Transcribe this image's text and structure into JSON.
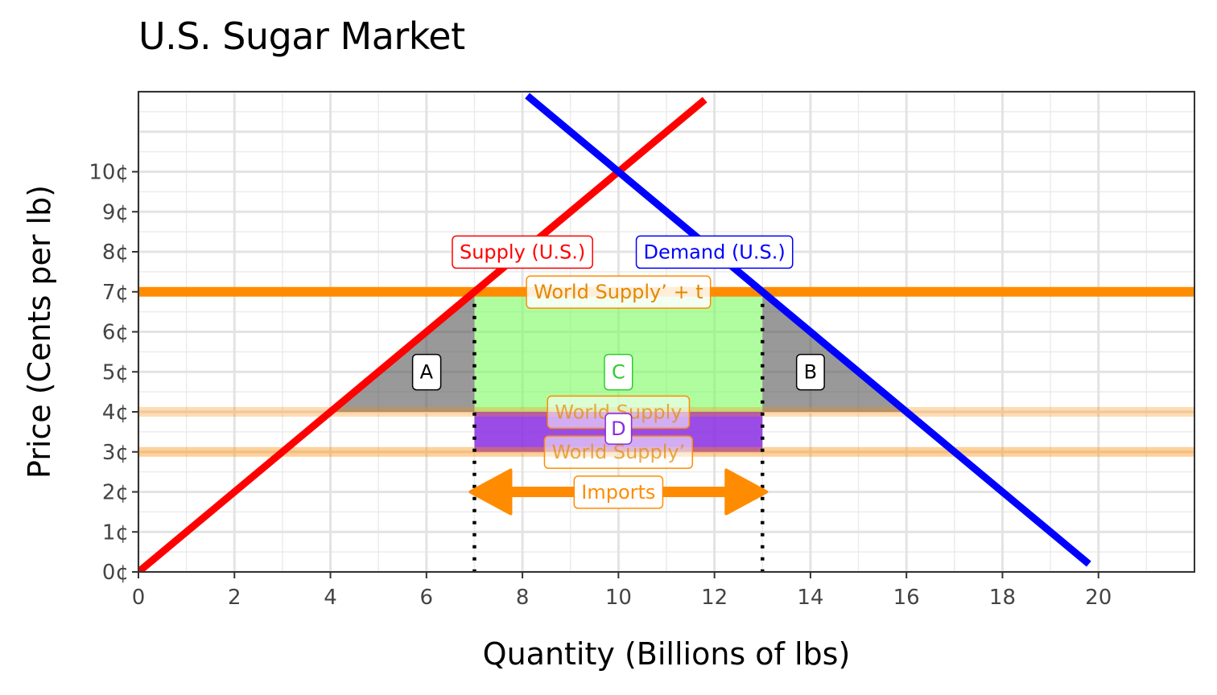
{
  "chart_data": {
    "type": "line",
    "title": "U.S. Sugar Market",
    "xlabel": "Quantity (Billions of lbs)",
    "ylabel": "Price (Cents per lb)",
    "xlim": [
      0,
      22
    ],
    "ylim": [
      0,
      12
    ],
    "x_ticks": [
      0,
      2,
      4,
      6,
      8,
      10,
      12,
      14,
      16,
      18,
      20
    ],
    "x_tick_labels": [
      "0",
      "2",
      "4",
      "6",
      "8",
      "10",
      "12",
      "14",
      "16",
      "18",
      "20"
    ],
    "y_ticks": [
      0,
      1,
      2,
      3,
      4,
      5,
      6,
      7,
      8,
      9,
      10
    ],
    "y_tick_labels": [
      "0¢",
      "1¢",
      "2¢",
      "3¢",
      "4¢",
      "5¢",
      "6¢",
      "7¢",
      "8¢",
      "9¢",
      "10¢"
    ],
    "grid": true,
    "series": [
      {
        "name": "Supply (U.S.)",
        "color": "#ff0000",
        "x": [
          0,
          11.8
        ],
        "y": [
          0,
          11.8
        ]
      },
      {
        "name": "Demand (U.S.)",
        "color": "#0000ff",
        "x": [
          8.1,
          19.8
        ],
        "y": [
          11.9,
          0.2
        ]
      }
    ],
    "hlines": [
      {
        "label": "World Supply’ + t",
        "y": 7,
        "color": "#ff8c00",
        "opacity": 1,
        "label_x": 10
      },
      {
        "label": "World Supply",
        "y": 4,
        "color": "#ff8c00",
        "opacity": 0.3,
        "label_x": 10
      },
      {
        "label": "World Supply’",
        "y": 3,
        "color": "#ff8c00",
        "opacity": 0.4,
        "label_x": 10
      }
    ],
    "vlines": [
      7,
      13
    ],
    "regions": [
      {
        "label": "A",
        "kind": "triangle",
        "points": [
          [
            4,
            4
          ],
          [
            7,
            7
          ],
          [
            7,
            4
          ]
        ],
        "color": "#555555",
        "label_at": [
          6,
          5
        ]
      },
      {
        "label": "B",
        "kind": "triangle",
        "points": [
          [
            13,
            7
          ],
          [
            13,
            4
          ],
          [
            16,
            4
          ]
        ],
        "color": "#555555",
        "label_at": [
          14,
          5
        ]
      },
      {
        "label": "C",
        "kind": "rect",
        "x": [
          7,
          13
        ],
        "y": [
          4,
          7
        ],
        "color": "#7cfc60",
        "label_at": [
          10,
          5
        ]
      },
      {
        "label": "D",
        "kind": "rect",
        "x": [
          7,
          13
        ],
        "y": [
          3,
          4
        ],
        "color": "#8a2be2",
        "label_at": [
          10,
          3.5
        ]
      }
    ],
    "annotations": [
      {
        "text": "Supply (U.S.)",
        "x": 8,
        "y": 8,
        "color": "#ff0000"
      },
      {
        "text": "Demand (U.S.)",
        "x": 12,
        "y": 8,
        "color": "#0000ff"
      },
      {
        "text": "Imports",
        "x": 10,
        "y": 2,
        "color": "#ff8c00",
        "arrow_from": 7,
        "arrow_to": 13
      }
    ]
  }
}
